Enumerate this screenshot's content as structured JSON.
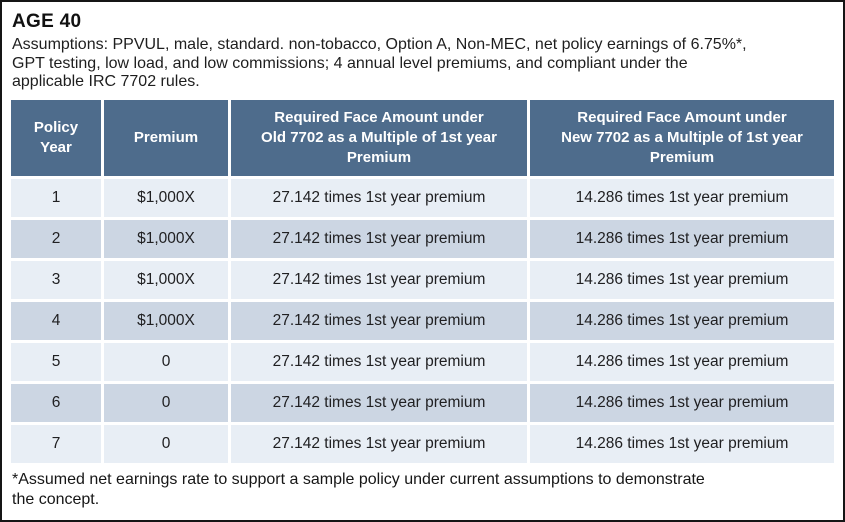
{
  "colors": {
    "header_bg": "#4e6c8c",
    "row_light": "#e8eef5",
    "row_dark": "#ccd6e3",
    "frame_border": "#151515",
    "header_text": "#ffffff",
    "body_text": "#202022"
  },
  "header": {
    "title": "AGE 40",
    "assumptions": "Assumptions: PPVUL, male, standard. non-tobacco, Option A, Non-MEC, net policy earnings of 6.75%*,\nGPT testing, low load, and low commissions; 4 annual level premiums, and compliant under the\napplicable IRC 7702 rules."
  },
  "table": {
    "columns": [
      "Policy\nYear",
      "Premium",
      "Required Face Amount under\nOld 7702 as a Multiple of 1st year\nPremium",
      "Required Face Amount under\nNew 7702 as a Multiple of 1st year\nPremium"
    ],
    "rows": [
      [
        "1",
        "$1,000X",
        "27.142 times 1st year premium",
        "14.286 times 1st year premium"
      ],
      [
        "2",
        "$1,000X",
        "27.142 times 1st year premium",
        "14.286 times 1st year premium"
      ],
      [
        "3",
        "$1,000X",
        "27.142 times 1st year premium",
        "14.286 times 1st year premium"
      ],
      [
        "4",
        "$1,000X",
        "27.142 times 1st year premium",
        "14.286 times 1st year premium"
      ],
      [
        "5",
        "0",
        "27.142 times 1st year premium",
        "14.286 times 1st year premium"
      ],
      [
        "6",
        "0",
        "27.142 times 1st year premium",
        "14.286 times 1st year premium"
      ],
      [
        "7",
        "0",
        "27.142 times 1st year premium",
        "14.286 times 1st year premium"
      ]
    ]
  },
  "footnote": "*Assumed net earnings rate to support a sample policy under current assumptions to demonstrate\nthe concept."
}
